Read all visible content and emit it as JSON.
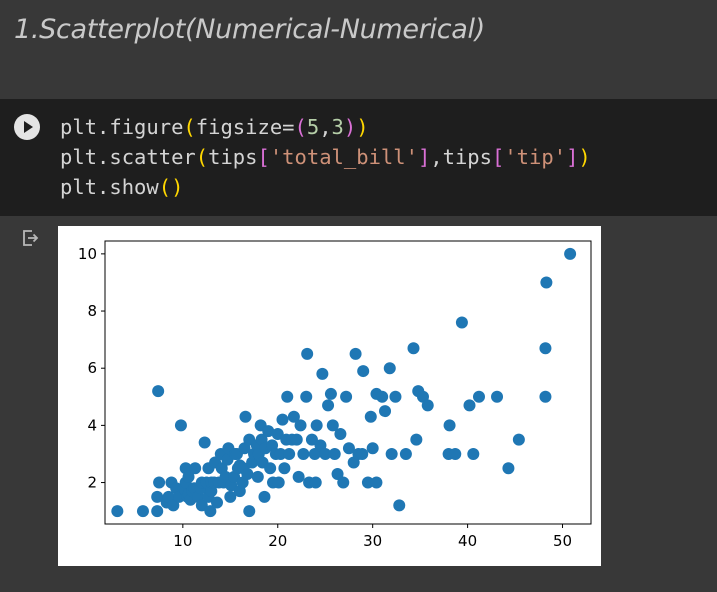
{
  "heading": "1.Scatterplot(Numerical-Numerical)",
  "code_cell": {
    "run_icon": "play-circle-icon",
    "lines": [
      [
        {
          "t": "plt.figure",
          "c": "plain"
        },
        {
          "t": "(",
          "c": "br1"
        },
        {
          "t": "figsize=",
          "c": "plain"
        },
        {
          "t": "(",
          "c": "br2"
        },
        {
          "t": "5",
          "c": "num"
        },
        {
          "t": ",",
          "c": "plain"
        },
        {
          "t": "3",
          "c": "num"
        },
        {
          "t": ")",
          "c": "br2"
        },
        {
          "t": ")",
          "c": "br1"
        }
      ],
      [
        {
          "t": "plt.scatter",
          "c": "plain"
        },
        {
          "t": "(",
          "c": "br1"
        },
        {
          "t": "tips",
          "c": "plain"
        },
        {
          "t": "[",
          "c": "br2"
        },
        {
          "t": "'total_bill'",
          "c": "str"
        },
        {
          "t": "]",
          "c": "br2"
        },
        {
          "t": ",tips",
          "c": "plain"
        },
        {
          "t": "[",
          "c": "br2"
        },
        {
          "t": "'tip'",
          "c": "str"
        },
        {
          "t": "]",
          "c": "br2"
        },
        {
          "t": ")",
          "c": "br1"
        }
      ],
      [
        {
          "t": "plt.show",
          "c": "plain"
        },
        {
          "t": "()",
          "c": "br1"
        }
      ]
    ]
  },
  "output": {
    "icon": "output-redirect-icon"
  },
  "colors": {
    "page_bg": "#383838",
    "code_bg": "#1e1e1e",
    "marker": "#1f77b4"
  },
  "chart_data": {
    "type": "scatter",
    "title": "",
    "xlabel": "",
    "ylabel": "",
    "xlim": [
      1.8,
      53.0
    ],
    "ylim": [
      0.55,
      10.45
    ],
    "xticks": [
      10,
      20,
      30,
      40,
      50
    ],
    "yticks": [
      2,
      4,
      6,
      8,
      10
    ],
    "grid": false,
    "points": [
      [
        3.1,
        1.0
      ],
      [
        5.8,
        1.0
      ],
      [
        7.3,
        1.0
      ],
      [
        7.3,
        1.5
      ],
      [
        7.5,
        2.0
      ],
      [
        7.4,
        5.2
      ],
      [
        8.3,
        1.3
      ],
      [
        8.5,
        1.5
      ],
      [
        8.8,
        2.0
      ],
      [
        9.0,
        1.2
      ],
      [
        9.3,
        1.8
      ],
      [
        9.6,
        1.5
      ],
      [
        9.8,
        4.0
      ],
      [
        10.1,
        1.8
      ],
      [
        10.3,
        1.7
      ],
      [
        10.3,
        2.0
      ],
      [
        10.3,
        2.5
      ],
      [
        10.5,
        1.5
      ],
      [
        10.6,
        1.6
      ],
      [
        10.6,
        2.2
      ],
      [
        10.8,
        1.4
      ],
      [
        11.0,
        1.7
      ],
      [
        11.2,
        1.8
      ],
      [
        11.3,
        2.5
      ],
      [
        11.6,
        1.5
      ],
      [
        11.9,
        1.8
      ],
      [
        12.0,
        1.2
      ],
      [
        12.0,
        2.0
      ],
      [
        12.3,
        3.4
      ],
      [
        12.5,
        2.0
      ],
      [
        12.7,
        1.5
      ],
      [
        12.7,
        2.5
      ],
      [
        12.9,
        1.0
      ],
      [
        13.0,
        1.7
      ],
      [
        13.0,
        2.0
      ],
      [
        13.3,
        2.0
      ],
      [
        13.4,
        2.7
      ],
      [
        13.6,
        1.3
      ],
      [
        13.8,
        2.0
      ],
      [
        14.0,
        3.0
      ],
      [
        14.1,
        2.5
      ],
      [
        14.3,
        2.0
      ],
      [
        14.5,
        2.2
      ],
      [
        14.7,
        2.8
      ],
      [
        14.8,
        3.2
      ],
      [
        15.0,
        1.5
      ],
      [
        15.1,
        1.9
      ],
      [
        15.4,
        2.2
      ],
      [
        15.5,
        3.0
      ],
      [
        15.7,
        3.0
      ],
      [
        15.8,
        2.5
      ],
      [
        16.0,
        1.7
      ],
      [
        16.0,
        2.6
      ],
      [
        16.3,
        2.0
      ],
      [
        16.4,
        2.5
      ],
      [
        16.5,
        3.2
      ],
      [
        16.6,
        4.3
      ],
      [
        16.8,
        2.3
      ],
      [
        17.0,
        3.5
      ],
      [
        17.0,
        1.0
      ],
      [
        17.3,
        2.7
      ],
      [
        17.5,
        3.0
      ],
      [
        17.8,
        3.3
      ],
      [
        17.9,
        2.2
      ],
      [
        18.0,
        3.0
      ],
      [
        18.2,
        4.0
      ],
      [
        18.3,
        3.5
      ],
      [
        18.4,
        2.7
      ],
      [
        18.6,
        1.5
      ],
      [
        18.7,
        3.2
      ],
      [
        19.0,
        3.8
      ],
      [
        19.2,
        2.5
      ],
      [
        19.4,
        3.3
      ],
      [
        19.5,
        2.0
      ],
      [
        19.8,
        3.0
      ],
      [
        20.0,
        3.7
      ],
      [
        20.1,
        2.0
      ],
      [
        20.3,
        3.0
      ],
      [
        20.5,
        4.2
      ],
      [
        20.7,
        2.5
      ],
      [
        20.9,
        3.5
      ],
      [
        21.0,
        5.0
      ],
      [
        21.2,
        3.0
      ],
      [
        21.5,
        3.5
      ],
      [
        21.7,
        4.3
      ],
      [
        22.0,
        3.5
      ],
      [
        22.2,
        2.2
      ],
      [
        22.4,
        4.0
      ],
      [
        22.7,
        3.0
      ],
      [
        23.0,
        5.0
      ],
      [
        23.1,
        6.5
      ],
      [
        23.3,
        2.0
      ],
      [
        23.6,
        3.5
      ],
      [
        23.9,
        3.0
      ],
      [
        24.0,
        2.0
      ],
      [
        24.1,
        4.0
      ],
      [
        24.5,
        3.3
      ],
      [
        24.7,
        5.8
      ],
      [
        25.0,
        3.0
      ],
      [
        25.3,
        4.7
      ],
      [
        25.6,
        5.1
      ],
      [
        25.8,
        4.0
      ],
      [
        26.0,
        3.0
      ],
      [
        26.3,
        2.3
      ],
      [
        26.6,
        3.7
      ],
      [
        26.9,
        2.0
      ],
      [
        27.2,
        5.0
      ],
      [
        27.5,
        3.2
      ],
      [
        28.0,
        2.7
      ],
      [
        28.2,
        6.5
      ],
      [
        28.5,
        3.0
      ],
      [
        28.9,
        3.0
      ],
      [
        29.0,
        5.9
      ],
      [
        29.5,
        2.0
      ],
      [
        29.8,
        4.3
      ],
      [
        30.0,
        3.2
      ],
      [
        30.4,
        5.1
      ],
      [
        30.4,
        2.0
      ],
      [
        31.0,
        5.0
      ],
      [
        31.3,
        4.5
      ],
      [
        31.8,
        6.0
      ],
      [
        32.0,
        3.0
      ],
      [
        32.4,
        5.0
      ],
      [
        32.8,
        1.2
      ],
      [
        33.5,
        3.0
      ],
      [
        34.3,
        6.7
      ],
      [
        34.6,
        3.5
      ],
      [
        34.8,
        5.2
      ],
      [
        35.3,
        5.0
      ],
      [
        35.8,
        4.7
      ],
      [
        38.0,
        3.0
      ],
      [
        38.1,
        4.0
      ],
      [
        38.7,
        3.0
      ],
      [
        39.4,
        7.6
      ],
      [
        40.2,
        4.7
      ],
      [
        40.6,
        3.0
      ],
      [
        41.2,
        5.0
      ],
      [
        43.1,
        5.0
      ],
      [
        44.3,
        2.5
      ],
      [
        45.4,
        3.5
      ],
      [
        48.2,
        5.0
      ],
      [
        48.3,
        9.0
      ],
      [
        48.2,
        6.7
      ],
      [
        50.8,
        10.0
      ]
    ]
  }
}
